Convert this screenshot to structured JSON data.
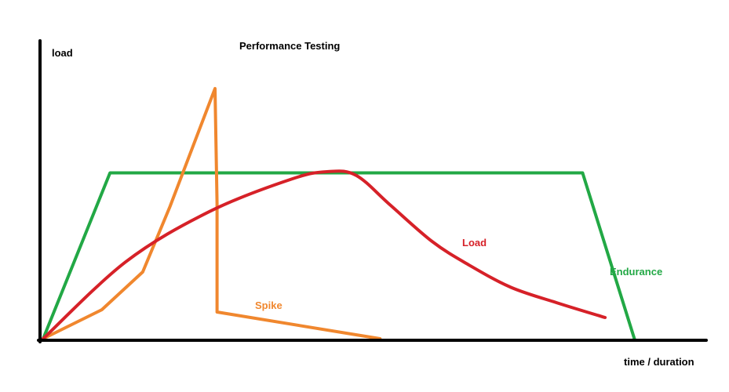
{
  "chart_data": {
    "type": "line",
    "title": "Performance Testing",
    "xlabel": "time / duration",
    "ylabel": "load",
    "xlim": [
      0,
      100
    ],
    "ylim": [
      0,
      100
    ],
    "grid": false,
    "series": [
      {
        "name": "Endurance",
        "color": "#22a845",
        "points": [
          [
            0,
            0
          ],
          [
            9.8,
            65.9
          ],
          [
            79.1,
            65.9
          ],
          [
            86.7,
            0
          ]
        ]
      },
      {
        "name": "Spike",
        "color": "#f0872e",
        "points": [
          [
            0,
            0
          ],
          [
            8.6,
            11.5
          ],
          [
            14.6,
            26.5
          ],
          [
            18.6,
            52.5
          ],
          [
            25.2,
            99.4
          ],
          [
            25.5,
            53.7
          ],
          [
            25.5,
            10.6
          ],
          [
            49.4,
            0
          ]
        ]
      },
      {
        "name": "Load",
        "color": "#d62128",
        "points": [
          [
            0,
            0
          ],
          [
            12.1,
            30.5
          ],
          [
            24.3,
            50.4
          ],
          [
            36.4,
            63.4
          ],
          [
            41.8,
            66.4
          ],
          [
            45.9,
            64.9
          ],
          [
            50.9,
            53.1
          ],
          [
            57.1,
            38.5
          ],
          [
            62.5,
            29.2
          ],
          [
            68.6,
            20.4
          ],
          [
            75.3,
            14.3
          ],
          [
            82.4,
            8.4
          ]
        ]
      }
    ]
  }
}
